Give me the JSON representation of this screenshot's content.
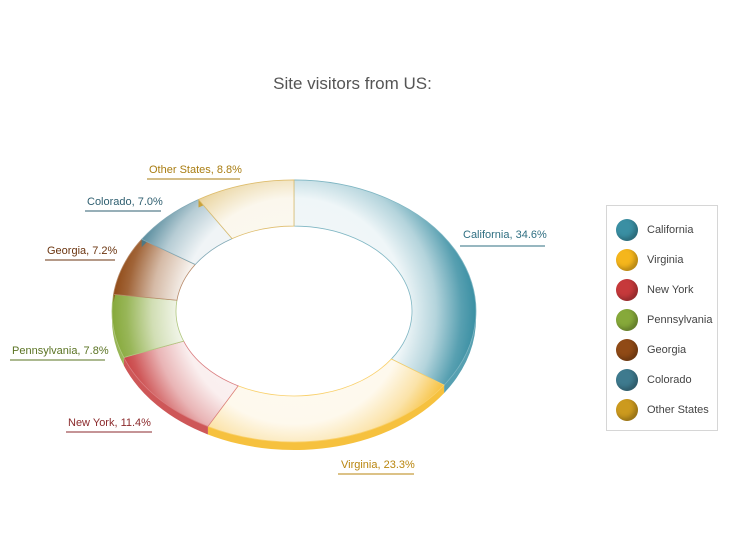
{
  "chart_data": {
    "type": "pie",
    "title": "Site visitors from US:",
    "legend_position": "right",
    "slices": [
      {
        "name": "California",
        "value": 34.6,
        "label": "California, 34.6%",
        "color": "#3a8fa3",
        "label_color": "#2f6f82"
      },
      {
        "name": "Virginia",
        "value": 23.3,
        "label": "Virginia, 23.3%",
        "color": "#f5b61c",
        "label_color": "#b9860f"
      },
      {
        "name": "New York",
        "value": 11.4,
        "label": "New York, 11.4%",
        "color": "#c6393b",
        "label_color": "#8b2a2c"
      },
      {
        "name": "Pennsylvania",
        "value": 7.8,
        "label": "Pennsylvania, 7.8%",
        "color": "#86a93a",
        "label_color": "#5a7322"
      },
      {
        "name": "Georgia",
        "value": 7.2,
        "label": "Georgia, 7.2%",
        "color": "#904a16",
        "label_color": "#6b3510"
      },
      {
        "name": "Colorado",
        "value": 7.0,
        "label": "Colorado, 7.0%",
        "color": "#3e7a8e",
        "label_color": "#2f5f70"
      },
      {
        "name": "Other States",
        "value": 8.8,
        "label": "Other States, 8.8%",
        "color": "#cc9a1e",
        "label_color": "#a97d12"
      }
    ]
  }
}
